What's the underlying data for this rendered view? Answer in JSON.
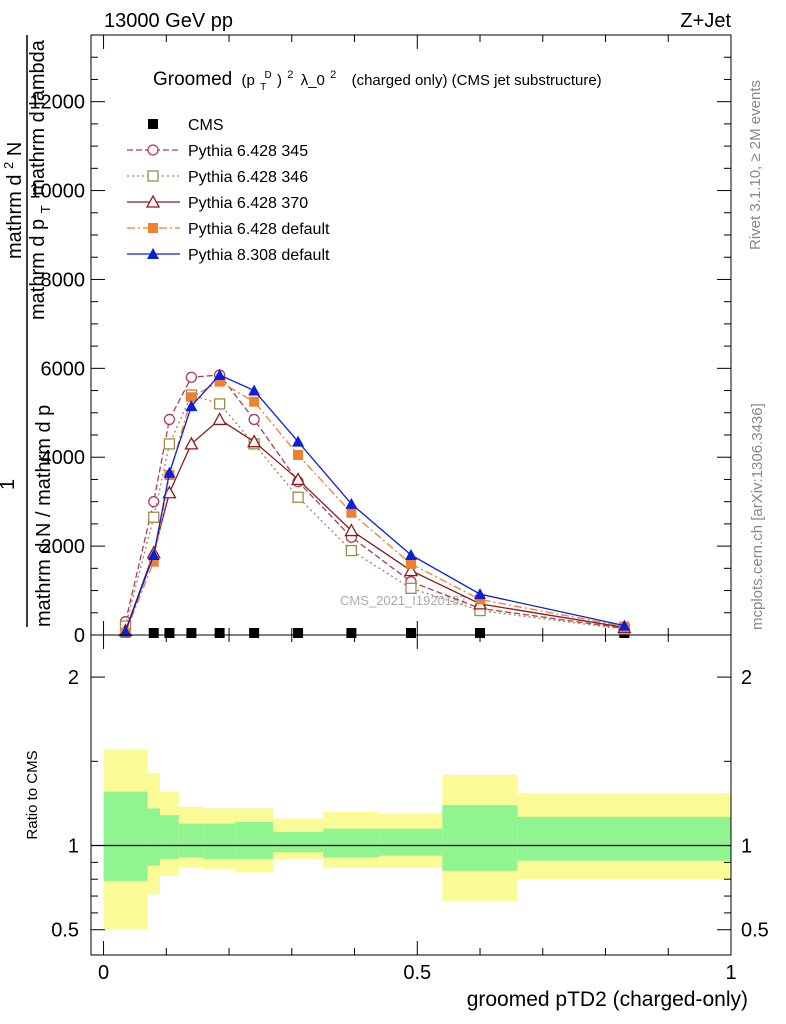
{
  "header": {
    "energy_label": "13000 GeV pp",
    "process_label": "Z+Jet",
    "rivet_label": "Rivet 3.1.10, ≥ 2M events",
    "mcplots_label": "mcplots.cern.ch [arXiv:1306.3436]",
    "analysis_label": "CMS_2021_I1920187"
  },
  "chart_data": [
    {
      "type": "line",
      "panel": "main",
      "title_main": "Groomed",
      "title_math_base": "(p",
      "title_math_sub": "T",
      "title_math_sup": "D",
      "title_math_close": ")",
      "title_math_exp": "2",
      "title_lambda": "λ_0",
      "title_lambda_exp": "2",
      "title_rest": "(charged only) (CMS jet substructure)",
      "ylabel_numerator": "mathrm d",
      "ylabel_numerator_sup": "2",
      "ylabel_numerator_N": "N",
      "ylabel_lead": "1",
      "ylabel_denominator_1": "mathrm d N / mathrm d p",
      "ylabel_denominator_2": "mathrm d p",
      "ylabel_denominator_2_sub": "T",
      "ylabel_denominator_2_rest": "mathrm d lambda",
      "ylim": [
        0,
        13500
      ],
      "xlim": [
        -0.02,
        1.0
      ],
      "yticks": [
        0,
        2000,
        4000,
        6000,
        8000,
        10000,
        12000
      ],
      "ytick_labels": [
        "0",
        "2000",
        "4000",
        "6000",
        "8000",
        "10000",
        "12000"
      ],
      "legend_position": "top-left",
      "series": [
        {
          "name": "CMS",
          "color": "#000000",
          "marker": "square-filled",
          "dash": "none",
          "x": [
            0.035,
            0.08,
            0.105,
            0.14,
            0.185,
            0.24,
            0.31,
            0.395,
            0.49,
            0.6,
            0.83
          ],
          "y": [
            0,
            0,
            0,
            0,
            0,
            0,
            0,
            0,
            0,
            0,
            0
          ]
        },
        {
          "name": "Pythia 6.428 345",
          "color": "#b03a5a",
          "marker": "circle-open",
          "dash": "6,3",
          "x": [
            0.035,
            0.08,
            0.105,
            0.14,
            0.185,
            0.24,
            0.31,
            0.395,
            0.49,
            0.6,
            0.83
          ],
          "y": [
            300,
            3000,
            4850,
            5800,
            5850,
            4850,
            3450,
            2200,
            1200,
            600,
            150
          ]
        },
        {
          "name": "Pythia 6.428 346",
          "color": "#9c8a4c",
          "marker": "square-open",
          "dash": "2,3",
          "x": [
            0.035,
            0.08,
            0.105,
            0.14,
            0.185,
            0.24,
            0.31,
            0.395,
            0.49,
            0.6,
            0.83
          ],
          "y": [
            200,
            2650,
            4300,
            5400,
            5200,
            4300,
            3100,
            1900,
            1050,
            550,
            130
          ]
        },
        {
          "name": "Pythia 6.428 370",
          "color": "#8b1a1a",
          "marker": "triangle-open",
          "dash": "none",
          "x": [
            0.035,
            0.08,
            0.105,
            0.14,
            0.185,
            0.24,
            0.31,
            0.395,
            0.49,
            0.6,
            0.83
          ],
          "y": [
            100,
            1850,
            3200,
            4300,
            4850,
            4350,
            3500,
            2350,
            1450,
            700,
            170
          ]
        },
        {
          "name": "Pythia 6.428 default",
          "color": "#f08030",
          "marker": "square-filled",
          "dash": "8,3,2,3",
          "x": [
            0.035,
            0.08,
            0.105,
            0.14,
            0.185,
            0.24,
            0.31,
            0.395,
            0.49,
            0.6,
            0.83
          ],
          "y": [
            50,
            1650,
            3600,
            5350,
            5700,
            5250,
            4050,
            2750,
            1600,
            800,
            190
          ]
        },
        {
          "name": "Pythia 8.308 default",
          "color": "#0a1fd8",
          "marker": "triangle-filled",
          "dash": "none",
          "x": [
            0.035,
            0.08,
            0.105,
            0.14,
            0.185,
            0.24,
            0.31,
            0.395,
            0.49,
            0.6,
            0.83
          ],
          "y": [
            80,
            1800,
            3650,
            5150,
            5850,
            5500,
            4350,
            2950,
            1800,
            920,
            210
          ]
        }
      ]
    },
    {
      "type": "area",
      "panel": "ratio",
      "ylabel": "Ratio to CMS",
      "xlabel": "groomed pTD2 (charged-only)",
      "ylim": [
        0.35,
        2.25
      ],
      "yticks": [
        0.5,
        1,
        2
      ],
      "ytick_labels": [
        "0.5",
        "1",
        "2"
      ],
      "xticks": [
        0,
        0.5,
        1
      ],
      "xtick_labels": [
        "0",
        "0.5",
        "1"
      ],
      "reference_line": 1,
      "band_colors": {
        "stat": "#90f590",
        "total": "#fafa96"
      },
      "bins": [
        {
          "x0": 0.0,
          "x1": 0.07,
          "inner_lo": 0.79,
          "inner_hi": 1.32,
          "outer_lo": 0.5,
          "outer_hi": 1.57
        },
        {
          "x0": 0.07,
          "x1": 0.09,
          "inner_lo": 0.88,
          "inner_hi": 1.22,
          "outer_lo": 0.71,
          "outer_hi": 1.43
        },
        {
          "x0": 0.09,
          "x1": 0.12,
          "inner_lo": 0.92,
          "inner_hi": 1.18,
          "outer_lo": 0.82,
          "outer_hi": 1.32
        },
        {
          "x0": 0.12,
          "x1": 0.16,
          "inner_lo": 0.93,
          "inner_hi": 1.13,
          "outer_lo": 0.87,
          "outer_hi": 1.23
        },
        {
          "x0": 0.16,
          "x1": 0.21,
          "inner_lo": 0.92,
          "inner_hi": 1.13,
          "outer_lo": 0.86,
          "outer_hi": 1.22
        },
        {
          "x0": 0.21,
          "x1": 0.27,
          "inner_lo": 0.92,
          "inner_hi": 1.14,
          "outer_lo": 0.84,
          "outer_hi": 1.22
        },
        {
          "x0": 0.27,
          "x1": 0.35,
          "inner_lo": 0.96,
          "inner_hi": 1.08,
          "outer_lo": 0.92,
          "outer_hi": 1.16
        },
        {
          "x0": 0.35,
          "x1": 0.44,
          "inner_lo": 0.93,
          "inner_hi": 1.1,
          "outer_lo": 0.87,
          "outer_hi": 1.2
        },
        {
          "x0": 0.44,
          "x1": 0.54,
          "inner_lo": 0.94,
          "inner_hi": 1.1,
          "outer_lo": 0.87,
          "outer_hi": 1.19
        },
        {
          "x0": 0.54,
          "x1": 0.66,
          "inner_lo": 0.85,
          "inner_hi": 1.24,
          "outer_lo": 0.67,
          "outer_hi": 1.42
        },
        {
          "x0": 0.66,
          "x1": 1.0,
          "inner_lo": 0.91,
          "inner_hi": 1.17,
          "outer_lo": 0.8,
          "outer_hi": 1.31
        }
      ]
    }
  ]
}
